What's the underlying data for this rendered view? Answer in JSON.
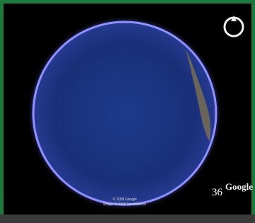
{
  "overlay": {
    "page_number": "36",
    "logo": "Google",
    "credits": [
      "© 2008 Google",
      "Image © 2008 TerraMetrics"
    ]
  }
}
